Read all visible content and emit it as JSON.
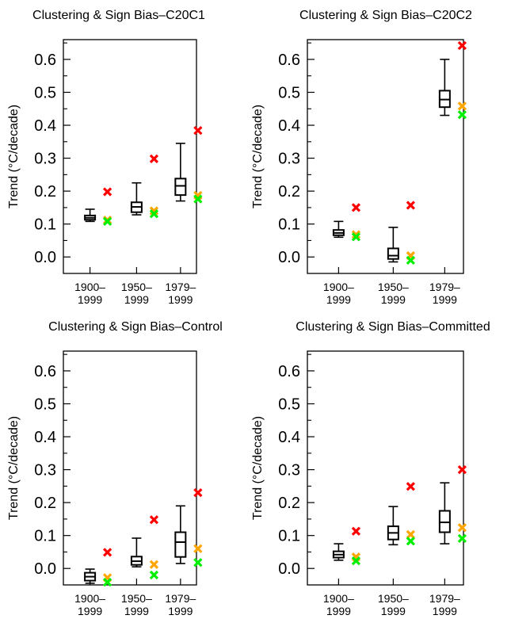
{
  "chart_data": [
    {
      "type": "boxplot",
      "title": "Clustering & Sign Bias–C20C1",
      "ylabel": "Trend (°C/decade)",
      "ylim": [
        -0.05,
        0.66
      ],
      "yticks": [
        "0.0",
        "0.1",
        "0.2",
        "0.3",
        "0.4",
        "0.5",
        "0.6"
      ],
      "categories": [
        [
          "1900–",
          "1999"
        ],
        [
          "1950–",
          "1999"
        ],
        [
          "1979–",
          "1999"
        ]
      ],
      "boxes": [
        {
          "min": 0.108,
          "q1": 0.113,
          "median": 0.119,
          "q3": 0.126,
          "max": 0.145
        },
        {
          "min": 0.128,
          "q1": 0.136,
          "median": 0.152,
          "q3": 0.166,
          "max": 0.225
        },
        {
          "min": 0.17,
          "q1": 0.188,
          "median": 0.216,
          "q3": 0.238,
          "max": 0.345
        }
      ],
      "markers": [
        {
          "color": "#ff0000",
          "values": [
            0.198,
            0.298,
            0.384
          ]
        },
        {
          "color": "#ffa500",
          "values": [
            0.112,
            0.14,
            0.187
          ]
        },
        {
          "color": "#00ee00",
          "values": [
            0.108,
            0.131,
            0.176
          ]
        }
      ]
    },
    {
      "type": "boxplot",
      "title": "Clustering & Sign Bias–C20C2",
      "ylabel": "Trend (°C/decade)",
      "ylim": [
        -0.05,
        0.66
      ],
      "yticks": [
        "0.0",
        "0.1",
        "0.2",
        "0.3",
        "0.4",
        "0.5",
        "0.6"
      ],
      "categories": [
        [
          "1900–",
          "1999"
        ],
        [
          "1950–",
          "1999"
        ],
        [
          "1979–",
          "1999"
        ]
      ],
      "boxes": [
        {
          "min": 0.06,
          "q1": 0.066,
          "median": 0.073,
          "q3": 0.082,
          "max": 0.108
        },
        {
          "min": -0.015,
          "q1": -0.006,
          "median": 0.004,
          "q3": 0.026,
          "max": 0.09
        },
        {
          "min": 0.43,
          "q1": 0.455,
          "median": 0.478,
          "q3": 0.505,
          "max": 0.6
        }
      ],
      "markers": [
        {
          "color": "#ff0000",
          "values": [
            0.15,
            0.157,
            0.642
          ]
        },
        {
          "color": "#ffa500",
          "values": [
            0.068,
            0.004,
            0.458
          ]
        },
        {
          "color": "#00ee00",
          "values": [
            0.061,
            -0.01,
            0.432
          ]
        }
      ]
    },
    {
      "type": "boxplot",
      "title": "Clustering & Sign Bias–Control",
      "ylabel": "Trend (°C/decade)",
      "ylim": [
        -0.05,
        0.66
      ],
      "yticks": [
        "0.0",
        "0.1",
        "0.2",
        "0.3",
        "0.4",
        "0.5",
        "0.6"
      ],
      "categories": [
        [
          "1900–",
          "1999"
        ],
        [
          "1950–",
          "1999"
        ],
        [
          "1979–",
          "1999"
        ]
      ],
      "boxes": [
        {
          "min": -0.045,
          "q1": -0.037,
          "median": -0.025,
          "q3": -0.013,
          "max": -0.002
        },
        {
          "min": 0.005,
          "q1": 0.011,
          "median": 0.022,
          "q3": 0.036,
          "max": 0.092
        },
        {
          "min": 0.015,
          "q1": 0.035,
          "median": 0.08,
          "q3": 0.11,
          "max": 0.19
        }
      ],
      "markers": [
        {
          "color": "#ff0000",
          "values": [
            0.049,
            0.148,
            0.23
          ]
        },
        {
          "color": "#ffa500",
          "values": [
            -0.028,
            0.012,
            0.06
          ]
        },
        {
          "color": "#00ee00",
          "values": [
            -0.042,
            -0.02,
            0.018
          ]
        }
      ]
    },
    {
      "type": "boxplot",
      "title": "Clustering & Sign Bias–Committed",
      "ylabel": "Trend (°C/decade)",
      "ylim": [
        -0.05,
        0.66
      ],
      "yticks": [
        "0.0",
        "0.1",
        "0.2",
        "0.3",
        "0.4",
        "0.5",
        "0.6"
      ],
      "categories": [
        [
          "1900–",
          "1999"
        ],
        [
          "1950–",
          "1999"
        ],
        [
          "1979–",
          "1999"
        ]
      ],
      "boxes": [
        {
          "min": 0.025,
          "q1": 0.033,
          "median": 0.042,
          "q3": 0.052,
          "max": 0.075
        },
        {
          "min": 0.072,
          "q1": 0.088,
          "median": 0.108,
          "q3": 0.128,
          "max": 0.188
        },
        {
          "min": 0.075,
          "q1": 0.11,
          "median": 0.14,
          "q3": 0.175,
          "max": 0.26
        }
      ],
      "markers": [
        {
          "color": "#ff0000",
          "values": [
            0.113,
            0.249,
            0.3
          ]
        },
        {
          "color": "#ffa500",
          "values": [
            0.035,
            0.103,
            0.124
          ]
        },
        {
          "color": "#00ee00",
          "values": [
            0.023,
            0.083,
            0.091
          ]
        }
      ]
    }
  ]
}
